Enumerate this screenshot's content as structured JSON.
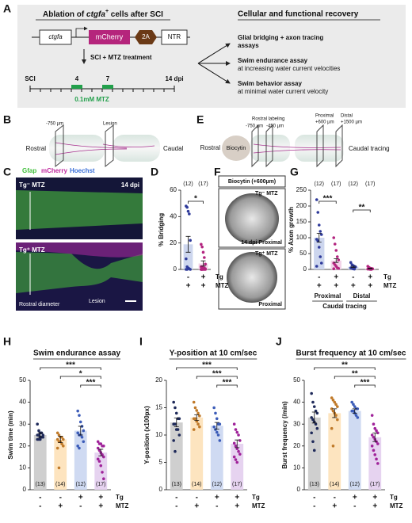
{
  "panel_letters": [
    "A",
    "B",
    "C",
    "D",
    "E",
    "F",
    "G",
    "H",
    "I",
    "J"
  ],
  "panel_a": {
    "title_parts": [
      "Ablation of ",
      "ctgfa",
      "+",
      " cells after SCI"
    ],
    "construct": [
      "ctgfa",
      "mCherry",
      "2A",
      "NTR"
    ],
    "treatment": "SCI + MTZ treatment",
    "timeline": [
      "SCI",
      "4",
      "7",
      "14 dpi"
    ],
    "drug": "0.1mM MTZ",
    "right_title": "Cellular and functional recovery",
    "outcomes": [
      {
        "title": "Glial bridging + axon tracing",
        "subtitle": "assays"
      },
      {
        "title": "Swim endurance assay",
        "subtitle": "at increasing water current velocities"
      },
      {
        "title": "Swim behavior assay",
        "subtitle": "at minimal water current velocity"
      }
    ]
  },
  "panel_b": {
    "distance": "-750 µm",
    "lesion": "Lesion",
    "left": "Rostral",
    "right": "Caudal"
  },
  "panel_e": {
    "labeling": "Rostral labeling",
    "d1": "-750 µm",
    "d2": "-450 µm",
    "proximal": "Proximal",
    "proximal_d": "+600 µm",
    "distal": "Distal",
    "distal_d": "+1500 µm",
    "left": "Rostral",
    "tracer": "Biocytin",
    "right": "Caudal tracing"
  },
  "panel_c": {
    "stains": [
      "Gfap",
      "mCherry",
      "Hoechst"
    ],
    "top_label": "Tg⁻ MTZ",
    "time": "14 dpi",
    "bottom_label": "Tg⁺ MTZ",
    "diameter": "Rostral diameter",
    "lesion": "Lesion"
  },
  "panel_f": {
    "title": "Biocytin (+600µm)",
    "top_label": "Tg⁻ MTZ",
    "top_caption": "14 dpi Proximal",
    "bottom_label": "Tg⁺ MTZ",
    "bottom_caption": "Proximal"
  },
  "chart_data": [
    {
      "type": "bar",
      "ylabel": "% Bridging",
      "ylim": [
        0,
        60
      ],
      "yticks": [
        0,
        20,
        40,
        60
      ],
      "values": [
        19,
        4.5
      ],
      "errors": [
        6,
        2
      ],
      "bar_colors": [
        "#cdd6ee",
        "#f2d3e8"
      ],
      "colors": [
        "#2e3a9a",
        "#b3247f"
      ],
      "points": [
        [
          48,
          47,
          44,
          42,
          22,
          8,
          2,
          1,
          0.5,
          0,
          0,
          0
        ],
        [
          19,
          17,
          13,
          9,
          4,
          2,
          2,
          1,
          1,
          0.5,
          0,
          0,
          0,
          0,
          0,
          0,
          0
        ]
      ],
      "n_labels": [
        "(12)",
        "(17)"
      ],
      "rows": [
        {
          "label": "Tg",
          "values": [
            "-",
            "+"
          ]
        },
        {
          "label": "MTZ",
          "values": [
            "+",
            "+"
          ]
        }
      ],
      "significance": [
        {
          "label": "*",
          "span": [
            0,
            1
          ]
        }
      ]
    },
    {
      "type": "bar",
      "ylabel": "% Axon growth",
      "ylim": [
        0,
        250
      ],
      "yticks": [
        0,
        50,
        100,
        150,
        200,
        250
      ],
      "values": [
        100,
        28,
        8,
        3
      ],
      "errors": [
        14,
        6,
        2,
        1
      ],
      "bar_colors": [
        "#cdd6ee",
        "#f2d3e8",
        "#cdd6ee",
        "#f2d3e8"
      ],
      "colors": [
        "#2e3a9a",
        "#b3247f",
        "#2e3a9a",
        "#b3247f"
      ],
      "points": [
        [
          220,
          180,
          140,
          120,
          110,
          95,
          90,
          70,
          40,
          20,
          10
        ],
        [
          100,
          80,
          60,
          40,
          30,
          20,
          15,
          10,
          5,
          3,
          2
        ],
        [
          22,
          15,
          12,
          10,
          8,
          5,
          3,
          2,
          1
        ],
        [
          10,
          6,
          4,
          3,
          2,
          1,
          1,
          0,
          0
        ]
      ],
      "n_labels": [
        "(12)",
        "(17)",
        "(12)",
        "(17)"
      ],
      "rows": [
        {
          "label": "Tg",
          "values": [
            "-",
            "+",
            "-",
            "+"
          ]
        },
        {
          "label": "MTZ",
          "values": [
            "+",
            "+",
            "+",
            "+"
          ]
        }
      ],
      "groups": [
        {
          "label": "Proximal",
          "span": [
            0,
            1
          ]
        },
        {
          "label": "Distal",
          "span": [
            2,
            3
          ]
        }
      ],
      "group_title": "Caudal tracing",
      "significance": [
        {
          "label": "***",
          "span": [
            0,
            1
          ]
        },
        {
          "label": "**",
          "span": [
            2,
            3
          ]
        }
      ]
    },
    {
      "type": "bar",
      "title": "Swim endurance assay",
      "ylabel": "Swim time (min)",
      "ylim": [
        0,
        50
      ],
      "yticks": [
        0,
        10,
        20,
        30,
        40,
        50
      ],
      "values": [
        25,
        23,
        27,
        17
      ],
      "errors": [
        1,
        1.5,
        2,
        1.5
      ],
      "bar_colors": [
        "#cfcfcf",
        "#fde4bf",
        "#cfdaf2",
        "#e6d3f0"
      ],
      "colors": [
        "#1f2a5a",
        "#c07a2a",
        "#3c5cb8",
        "#a0239a"
      ],
      "points": [
        [
          30,
          27,
          26,
          26,
          25,
          25,
          25,
          24,
          24,
          24,
          23,
          23,
          23
        ],
        [
          26,
          25,
          24,
          24,
          23,
          23,
          22,
          22,
          21,
          20,
          19,
          10
        ],
        [
          36,
          34,
          31,
          29,
          27,
          26,
          25,
          25,
          24,
          22,
          20,
          19
        ],
        [
          22,
          21,
          21,
          20,
          20,
          19,
          18,
          17,
          16,
          15,
          14,
          13,
          11,
          8,
          5
        ]
      ],
      "n_labels": [
        "(13)",
        "(14)",
        "(12)",
        "(17)"
      ],
      "rows": [
        {
          "label": "Tg",
          "values": [
            "-",
            "-",
            "+",
            "+"
          ]
        },
        {
          "label": "MTZ",
          "values": [
            "-",
            "+",
            "-",
            "+"
          ]
        }
      ],
      "significance": [
        {
          "label": "***",
          "span": [
            0,
            3
          ]
        },
        {
          "label": "*",
          "span": [
            1,
            3
          ]
        },
        {
          "label": "***",
          "span": [
            2,
            3
          ]
        }
      ]
    },
    {
      "type": "bar",
      "title": "Y-position at 10 cm/sec",
      "ylabel": "Y-position (x100px)",
      "ylim": [
        0,
        20
      ],
      "yticks": [
        0,
        5,
        10,
        15,
        20
      ],
      "values": [
        12.3,
        13.2,
        11.7,
        8.4
      ],
      "errors": [
        0.8,
        0.5,
        0.6,
        0.7
      ],
      "bar_colors": [
        "#cfcfcf",
        "#fde4bf",
        "#cfdaf2",
        "#e6d3f0"
      ],
      "colors": [
        "#1f2a5a",
        "#c07a2a",
        "#3c5cb8",
        "#a0239a"
      ],
      "points": [
        [
          16,
          15,
          14,
          13,
          13,
          12,
          12,
          11,
          11,
          10,
          9,
          7
        ],
        [
          16,
          15,
          14.5,
          14,
          13.5,
          13,
          13,
          12.5,
          12,
          11.5,
          11
        ],
        [
          15,
          14,
          13,
          12,
          12,
          11.5,
          11,
          10.5,
          10,
          9
        ],
        [
          12,
          11,
          10.5,
          10,
          9,
          8.5,
          8,
          7.5,
          7,
          6.5,
          6,
          5.5,
          5
        ]
      ],
      "n_labels": [
        "(13)",
        "(14)",
        "(12)",
        "(17)"
      ],
      "rows": [
        {
          "label": "Tg",
          "values": [
            "-",
            "-",
            "+",
            "+"
          ]
        },
        {
          "label": "MTZ",
          "values": [
            "-",
            "+",
            "-",
            "+"
          ]
        }
      ],
      "significance": [
        {
          "label": "***",
          "span": [
            0,
            3
          ]
        },
        {
          "label": "***",
          "span": [
            1,
            3
          ]
        },
        {
          "label": "***",
          "span": [
            2,
            3
          ]
        }
      ]
    },
    {
      "type": "bar",
      "title": "Burst frequency at 10 cm/sec",
      "ylabel": "Burst frequency (/min)",
      "ylim": [
        0,
        50
      ],
      "yticks": [
        0,
        10,
        20,
        30,
        40,
        50
      ],
      "values": [
        33,
        35,
        36,
        24
      ],
      "errors": [
        2.5,
        2,
        1,
        2
      ],
      "bar_colors": [
        "#cfcfcf",
        "#fde4bf",
        "#cfdaf2",
        "#e6d3f0"
      ],
      "colors": [
        "#1f2a5a",
        "#c07a2a",
        "#3c5cb8",
        "#a0239a"
      ],
      "points": [
        [
          44,
          40,
          38,
          36,
          35,
          33,
          32,
          31,
          30,
          28,
          26,
          22,
          18
        ],
        [
          42,
          41,
          40,
          39,
          38,
          37,
          36,
          35,
          34,
          32,
          28,
          20
        ],
        [
          40,
          39,
          38,
          37,
          37,
          36,
          36,
          35,
          34,
          33
        ],
        [
          34,
          30,
          28,
          27,
          26,
          25,
          24,
          23,
          22,
          21,
          20,
          18,
          16,
          14,
          12
        ]
      ],
      "n_labels": [
        "(13)",
        "(14)",
        "(12)",
        "(17)"
      ],
      "rows": [
        {
          "label": "Tg",
          "values": [
            "-",
            "-",
            "+",
            "+"
          ]
        },
        {
          "label": "MTZ",
          "values": [
            "-",
            "+",
            "-",
            "+"
          ]
        }
      ],
      "significance": [
        {
          "label": "**",
          "span": [
            0,
            3
          ]
        },
        {
          "label": "**",
          "span": [
            1,
            3
          ]
        },
        {
          "label": "***",
          "span": [
            2,
            3
          ]
        }
      ]
    }
  ]
}
